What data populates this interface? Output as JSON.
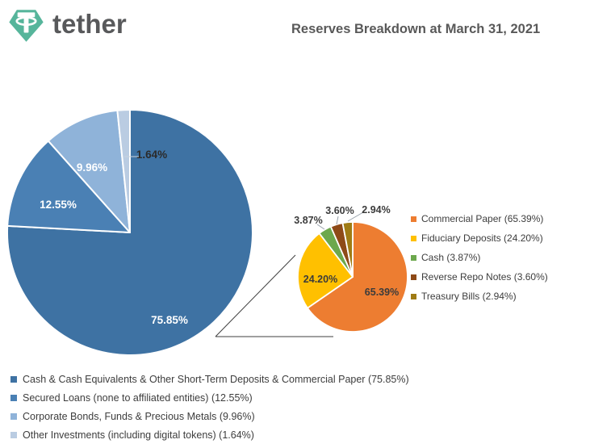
{
  "header": {
    "brand": "tether",
    "brand_color": "#56B59B",
    "title": "Reserves Breakdown at March 31, 2021"
  },
  "chart_data": [
    {
      "type": "pie",
      "id": "reserves-main",
      "title": "Reserves Breakdown at March 31, 2021",
      "legend_position": "bottom-left",
      "slices": [
        {
          "label": "Cash & Cash Equivalents & Other Short-Term Deposits & Commercial Paper",
          "value": 75.85,
          "data_label": "75.85%",
          "color": "#3E72A3",
          "label_color": "#FFFFFF",
          "legend_label": "Cash & Cash Equivalents & Other Short-Term Deposits & Commercial Paper (75.85%)"
        },
        {
          "label": "Secured Loans (none to affiliated entities)",
          "value": 12.55,
          "data_label": "12.55%",
          "color": "#4A80B4",
          "label_color": "#FFFFFF",
          "legend_label": "Secured Loans (none to affiliated entities) (12.55%)"
        },
        {
          "label": "Corporate Bonds, Funds & Precious Metals",
          "value": 9.96,
          "data_label": "9.96%",
          "color": "#8FB3D9",
          "label_color": "#FFFFFF",
          "legend_label": "Corporate Bonds, Funds & Precious Metals (9.96%)"
        },
        {
          "label": "Other Investments (including digital tokens)",
          "value": 1.64,
          "data_label": "1.64%",
          "color": "#BACCE2",
          "label_color": "#2B2B2B",
          "legend_label": "Other Investments (including digital tokens) (1.64%)"
        }
      ]
    },
    {
      "type": "pie",
      "id": "cash-equivalents-detail",
      "title": "",
      "legend_position": "right",
      "slices": [
        {
          "label": "Commercial Paper",
          "value": 65.39,
          "data_label": "65.39%",
          "color": "#ED7D31",
          "label_color": "#3B3B3B",
          "legend_label": "Commercial Paper (65.39%)"
        },
        {
          "label": "Fiduciary Deposits",
          "value": 24.2,
          "data_label": "24.20%",
          "color": "#FFC000",
          "label_color": "#3B3B3B",
          "legend_label": "Fiduciary Deposits (24.20%)"
        },
        {
          "label": "Cash",
          "value": 3.87,
          "data_label": "3.87%",
          "color": "#6CA84D",
          "label_color": "#3B3B3B",
          "legend_label": "Cash (3.87%)"
        },
        {
          "label": "Reverse Repo Notes",
          "value": 3.6,
          "data_label": "3.60%",
          "color": "#8E4A17",
          "label_color": "#3B3B3B",
          "legend_label": "Reverse Repo Notes (3.60%)"
        },
        {
          "label": "Treasury Bills",
          "value": 2.94,
          "data_label": "2.94%",
          "color": "#9F7B14",
          "label_color": "#3B3B3B",
          "legend_label": "Treasury Bills (2.94%)"
        }
      ]
    }
  ]
}
